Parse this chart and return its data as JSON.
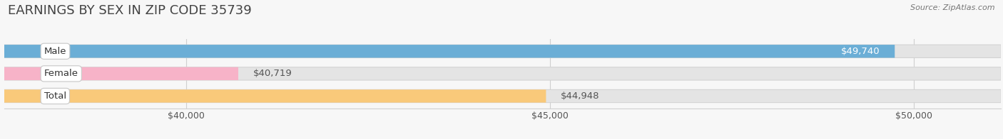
{
  "title": "EARNINGS BY SEX IN ZIP CODE 35739",
  "source": "Source: ZipAtlas.com",
  "categories": [
    "Male",
    "Female",
    "Total"
  ],
  "values": [
    49740,
    40719,
    44948
  ],
  "bar_colors": [
    "#6baed6",
    "#f7b3c8",
    "#f9c97a"
  ],
  "label_colors": [
    "#ffffff",
    "#555555",
    "#555555"
  ],
  "label_positions": [
    "inside_end",
    "outside_end",
    "outside_end"
  ],
  "x_min": 37500,
  "x_max": 51200,
  "tick_values": [
    40000,
    45000,
    50000
  ],
  "tick_labels": [
    "$40,000",
    "$45,000",
    "$50,000"
  ],
  "background_color": "#f7f7f7",
  "bar_background_color": "#e4e4e4",
  "title_fontsize": 13,
  "label_fontsize": 9.5,
  "tick_fontsize": 9,
  "bar_height": 0.58,
  "fig_width": 14.06,
  "fig_height": 1.96
}
